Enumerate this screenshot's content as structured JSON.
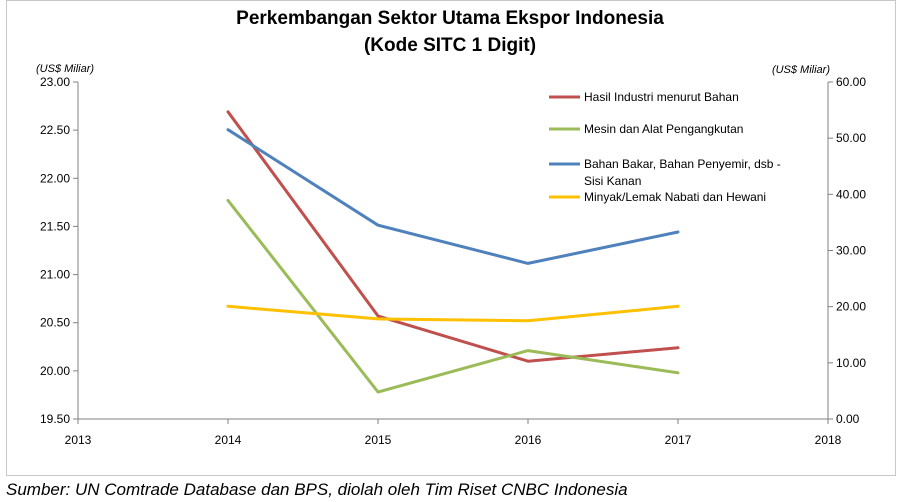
{
  "chart_data": {
    "type": "line",
    "title": [
      "Perkembangan Sektor Utama Ekspor Indonesia",
      "(Kode SITC 1 Digit)"
    ],
    "left_axis_unit": "(US$ Miliar)",
    "right_axis_unit": "(US$ Miliar)",
    "x_ticks": [
      "2013",
      "2014",
      "2015",
      "2016",
      "2017",
      "2018"
    ],
    "xlim": [
      2013,
      2018
    ],
    "left_ticks": [
      "19.50",
      "20.00",
      "20.50",
      "21.00",
      "21.50",
      "22.00",
      "22.50",
      "23.00"
    ],
    "ylim_left": [
      19.5,
      23.0
    ],
    "right_ticks": [
      "0.00",
      "10.00",
      "20.00",
      "30.00",
      "40.00",
      "50.00",
      "60.00"
    ],
    "ylim_right": [
      0,
      60
    ],
    "grid": false,
    "legend_position": "top-right",
    "x": [
      2014,
      2015,
      2016,
      2017
    ],
    "series": [
      {
        "name": "Hasil Industri menurut Bahan",
        "axis": "left",
        "color": "#c0504d",
        "values": [
          22.69,
          20.57,
          20.1,
          20.24
        ]
      },
      {
        "name": "Mesin dan Alat Pengangkutan",
        "axis": "left",
        "color": "#9bbb59",
        "values": [
          21.77,
          19.78,
          20.21,
          19.98
        ]
      },
      {
        "name_lines": [
          "Bahan Bakar, Bahan Penyemir, dsb -",
          "Sisi Kanan"
        ],
        "axis": "right",
        "color": "#4f81bd",
        "values": [
          51.5,
          34.5,
          27.7,
          33.3
        ]
      },
      {
        "name": "Minyak/Lemak Nabati dan Hewani",
        "axis": "left",
        "color": "#ffc000",
        "values": [
          20.67,
          20.54,
          20.52,
          20.67
        ]
      }
    ]
  },
  "source": "Sumber: UN Comtrade Database dan BPS, diolah oleh Tim Riset CNBC Indonesia"
}
